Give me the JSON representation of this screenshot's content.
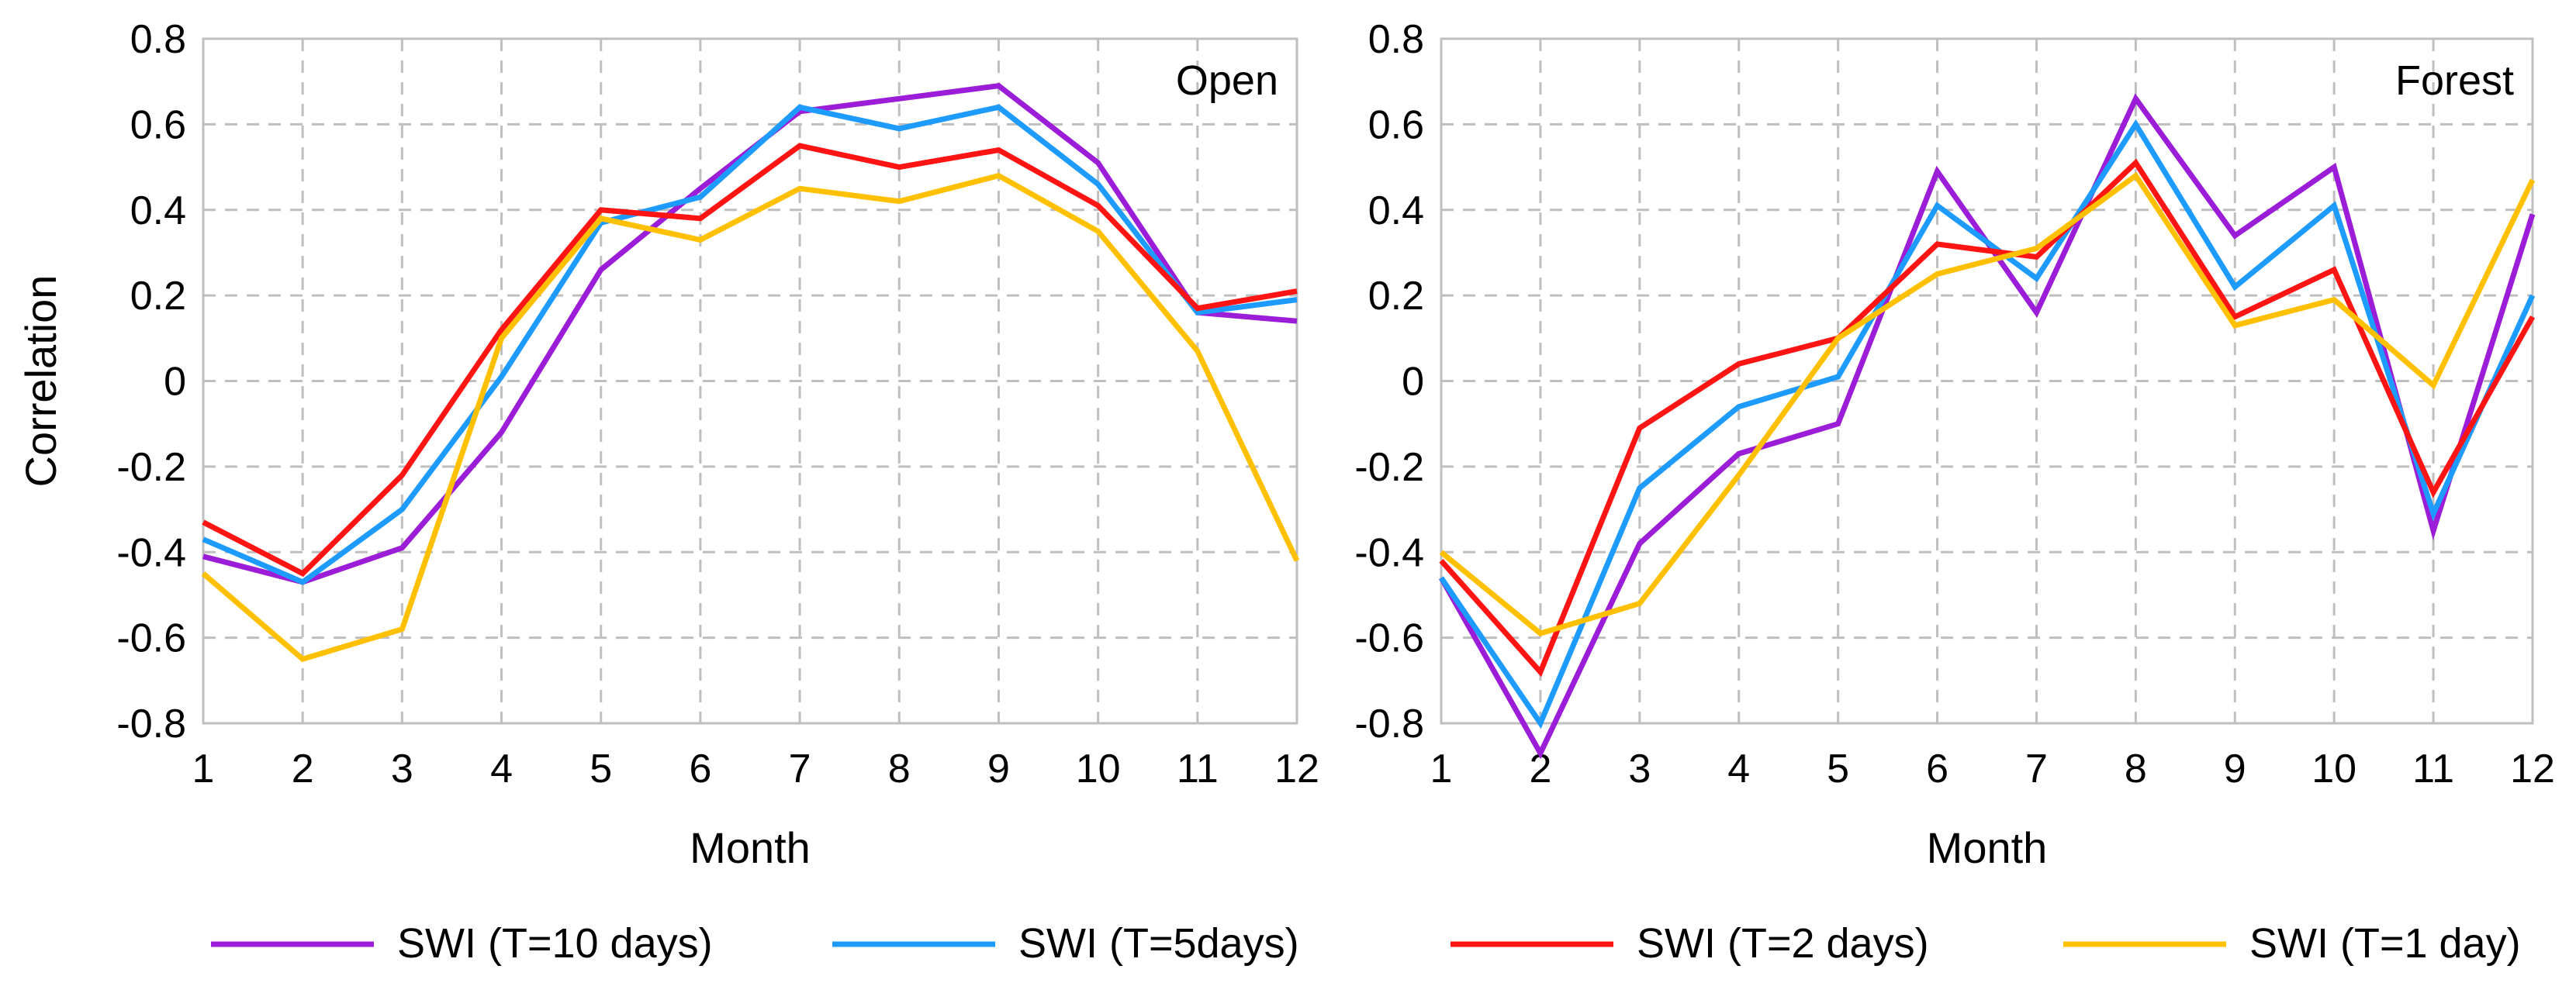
{
  "chart_data": [
    {
      "type": "line",
      "title": "Open",
      "xlabel": "Month",
      "ylabel": "Correlation",
      "categories": [
        "1",
        "2",
        "3",
        "4",
        "5",
        "6",
        "7",
        "8",
        "9",
        "10",
        "11",
        "12"
      ],
      "ylim": [
        -0.8,
        0.8
      ],
      "yticks": [
        "0.8",
        "0.6",
        "0.4",
        "0.2",
        "0",
        "-0.2",
        "-0.4",
        "-0.6",
        "-0.8"
      ],
      "grid": true,
      "series": [
        {
          "name": "SWI (T=10 days)",
          "color": "#9b1dd8",
          "values": [
            -0.41,
            -0.47,
            -0.39,
            -0.12,
            0.26,
            0.45,
            0.63,
            0.66,
            0.69,
            0.51,
            0.16,
            0.14
          ]
        },
        {
          "name": "SWI (T=5days)",
          "color": "#1e9bff",
          "values": [
            -0.37,
            -0.47,
            -0.3,
            0.01,
            0.37,
            0.43,
            0.64,
            0.59,
            0.64,
            0.46,
            0.16,
            0.19
          ]
        },
        {
          "name": "SWI (T=2 days)",
          "color": "#ff1414",
          "values": [
            -0.33,
            -0.45,
            -0.22,
            0.12,
            0.4,
            0.38,
            0.55,
            0.5,
            0.54,
            0.41,
            0.17,
            0.21
          ]
        },
        {
          "name": "SWI (T=1 day)",
          "color": "#ffc000",
          "values": [
            -0.45,
            -0.65,
            -0.58,
            0.1,
            0.38,
            0.33,
            0.45,
            0.42,
            0.48,
            0.35,
            0.07,
            -0.42
          ]
        }
      ]
    },
    {
      "type": "line",
      "title": "Forest",
      "xlabel": "Month",
      "ylabel": "",
      "categories": [
        "1",
        "2",
        "3",
        "4",
        "5",
        "6",
        "7",
        "8",
        "9",
        "10",
        "11",
        "12"
      ],
      "ylim": [
        -0.8,
        0.8
      ],
      "yticks": [
        "0.8",
        "0.6",
        "0.4",
        "0.2",
        "0",
        "-0.2",
        "-0.4",
        "-0.6",
        "-0.8"
      ],
      "grid": true,
      "series": [
        {
          "name": "SWI (T=10 days)",
          "color": "#9b1dd8",
          "values": [
            -0.46,
            -0.87,
            -0.38,
            -0.17,
            -0.1,
            0.49,
            0.16,
            0.66,
            0.34,
            0.5,
            -0.35,
            0.39
          ]
        },
        {
          "name": "SWI (T=5days)",
          "color": "#1e9bff",
          "values": [
            -0.46,
            -0.8,
            -0.25,
            -0.06,
            0.01,
            0.41,
            0.24,
            0.6,
            0.22,
            0.41,
            -0.31,
            0.2
          ]
        },
        {
          "name": "SWI (T=2 days)",
          "color": "#ff1414",
          "values": [
            -0.42,
            -0.68,
            -0.11,
            0.04,
            0.1,
            0.32,
            0.29,
            0.51,
            0.15,
            0.26,
            -0.26,
            0.15
          ]
        },
        {
          "name": "SWI (T=1 day)",
          "color": "#ffc000",
          "values": [
            -0.4,
            -0.59,
            -0.52,
            -0.22,
            0.1,
            0.25,
            0.31,
            0.48,
            0.13,
            0.19,
            -0.01,
            0.47
          ]
        }
      ]
    }
  ],
  "legend": {
    "placement": "bottom",
    "items": [
      {
        "label": "SWI (T=10 days)",
        "color": "#9b1dd8"
      },
      {
        "label": "SWI (T=5days)",
        "color": "#1e9bff"
      },
      {
        "label": "SWI (T=2 days)",
        "color": "#ff1414"
      },
      {
        "label": "SWI (T=1 day)",
        "color": "#ffc000"
      }
    ]
  }
}
